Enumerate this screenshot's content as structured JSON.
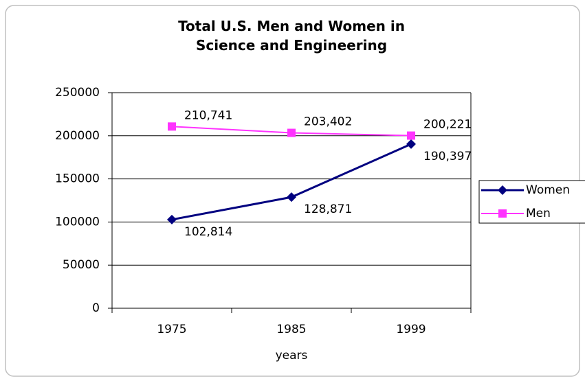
{
  "chart_data": {
    "type": "line",
    "title": "Total U.S. Men and Women in Science and Engineering",
    "x_label": "years",
    "categories": [
      "1975",
      "1985",
      "1999"
    ],
    "series": [
      {
        "name": "Women",
        "color": "#000080",
        "marker": "diamond",
        "values": [
          102814,
          128871,
          190397
        ],
        "value_labels": [
          "102,814",
          "128,871",
          "190,397"
        ]
      },
      {
        "name": "Men",
        "color": "#ff33ff",
        "marker": "square",
        "values": [
          210741,
          203402,
          200221
        ],
        "value_labels": [
          "210,741",
          "203,402",
          "200,221"
        ]
      }
    ],
    "ylim": [
      0,
      250000
    ],
    "yticks": [
      0,
      50000,
      100000,
      150000,
      200000,
      250000
    ],
    "grid": true,
    "legend": "right"
  }
}
